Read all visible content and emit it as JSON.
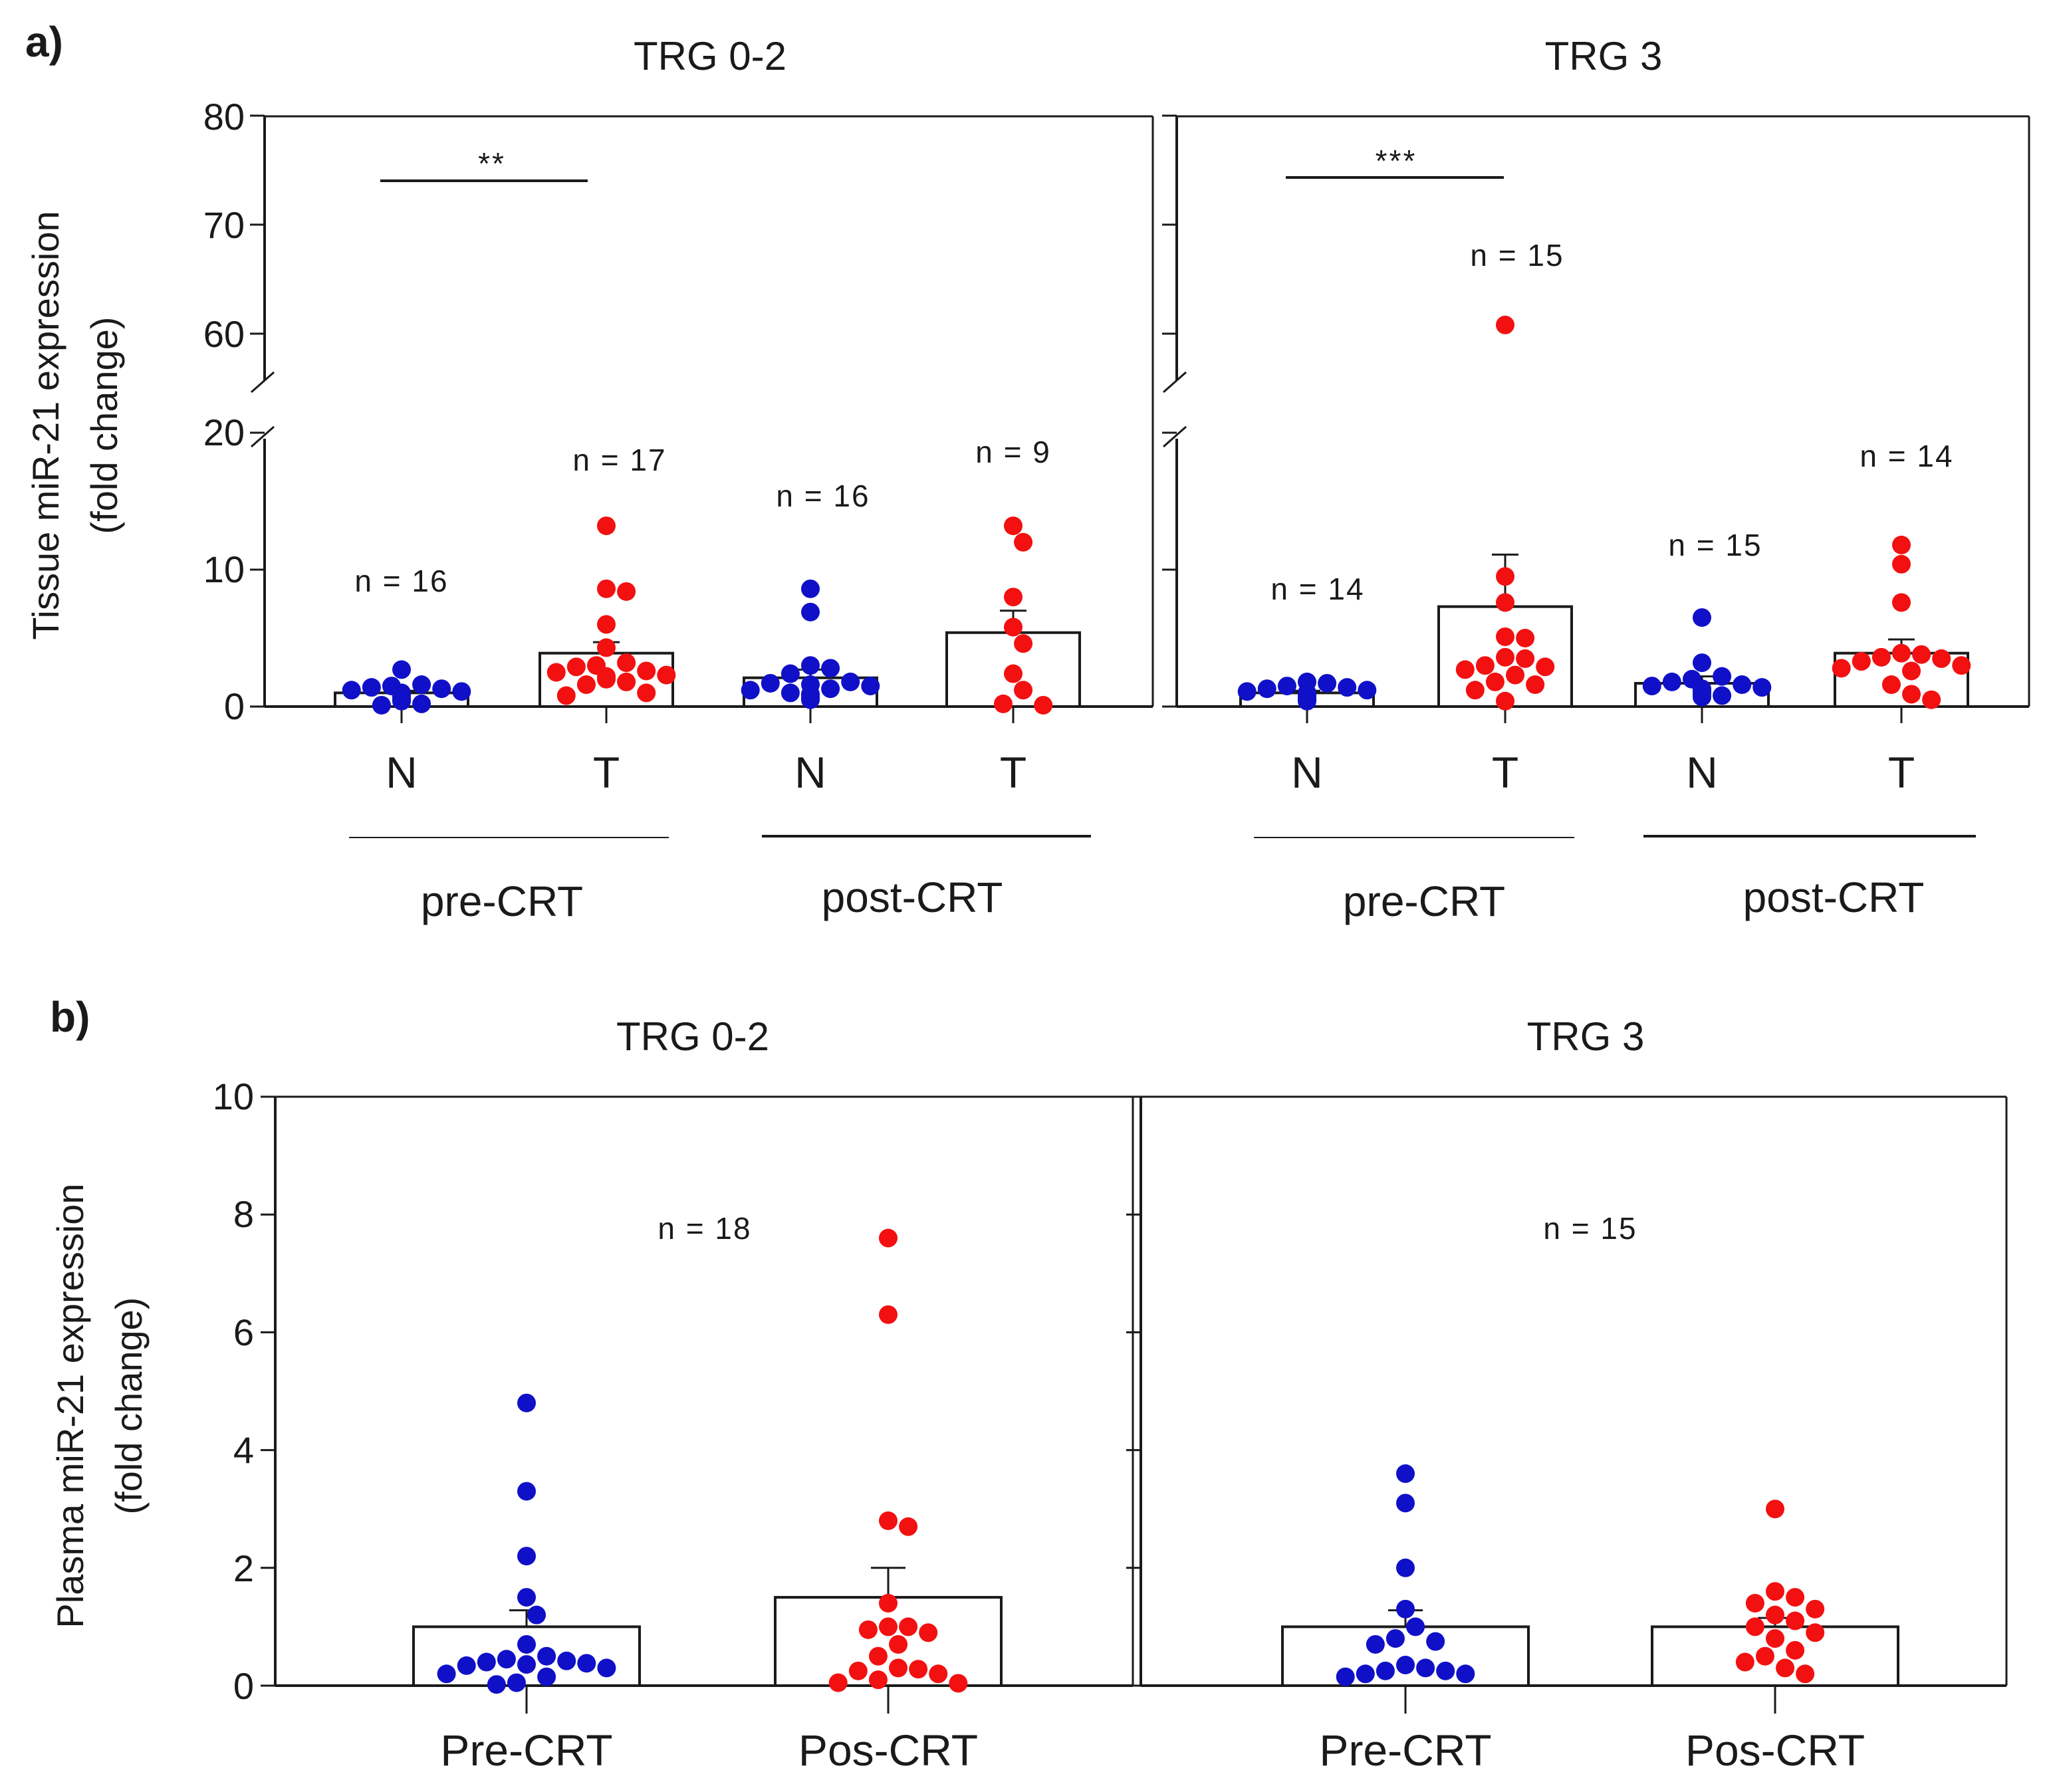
{
  "colors": {
    "normal": "#1010c8",
    "tumor": "#f21010",
    "axis": "#1a1a1a"
  },
  "chart_data": [
    {
      "panel": "a)",
      "type": "bar",
      "ylabel_lines": [
        "Tissue miR-21 expression",
        "(fold change)"
      ],
      "y_ticks": [
        "0",
        "10",
        "20",
        "60",
        "70",
        "80"
      ],
      "y_break": {
        "lower": [
          0,
          22
        ],
        "upper": [
          55,
          80
        ]
      },
      "facets": [
        {
          "title": "TRG 0-2",
          "significance": "**",
          "groups": [
            {
              "label": "pre-CRT",
              "bars": [
                {
                  "category": "N",
                  "n_label": "n = 16",
                  "mean": 1.0,
                  "sem": 0.15,
                  "color": "normal",
                  "points": [
                    2.7,
                    1.6,
                    1.5,
                    1.4,
                    1.3,
                    1.2,
                    1.1,
                    1.0,
                    0.9,
                    0.8,
                    0.7,
                    0.6,
                    0.5,
                    0.4,
                    0.2,
                    0.1
                  ]
                },
                {
                  "category": "T",
                  "n_label": "n = 17",
                  "mean": 3.9,
                  "sem": 0.8,
                  "color": "tumor",
                  "points": [
                    13.2,
                    8.6,
                    8.4,
                    6.0,
                    4.3,
                    3.2,
                    3.0,
                    2.9,
                    2.6,
                    2.5,
                    2.3,
                    2.2,
                    2.0,
                    1.8,
                    1.6,
                    1.0,
                    0.8
                  ]
                }
              ]
            },
            {
              "label": "post-CRT",
              "bars": [
                {
                  "category": "N",
                  "n_label": "n = 16",
                  "mean": 2.1,
                  "sem": 0.6,
                  "color": "normal",
                  "points": [
                    8.6,
                    6.9,
                    3.0,
                    2.8,
                    2.4,
                    1.8,
                    1.7,
                    1.6,
                    1.5,
                    1.3,
                    1.2,
                    1.0,
                    0.9,
                    0.8,
                    0.6,
                    0.5
                  ]
                },
                {
                  "category": "T",
                  "n_label": "n = 9",
                  "mean": 5.4,
                  "sem": 1.6,
                  "color": "tumor",
                  "points": [
                    13.2,
                    12.0,
                    8.0,
                    5.8,
                    4.6,
                    2.4,
                    1.2,
                    0.2,
                    0.1
                  ]
                }
              ]
            }
          ]
        },
        {
          "title": "TRG 3",
          "significance": "***",
          "groups": [
            {
              "label": "pre-CRT",
              "bars": [
                {
                  "category": "N",
                  "n_label": "n = 14",
                  "mean": 1.0,
                  "sem": 0.15,
                  "color": "normal",
                  "points": [
                    1.8,
                    1.7,
                    1.5,
                    1.4,
                    1.3,
                    1.2,
                    1.1,
                    1.0,
                    0.9,
                    0.8,
                    0.7,
                    0.6,
                    0.5,
                    0.4
                  ]
                },
                {
                  "category": "T",
                  "n_label": "n = 15",
                  "mean": 7.3,
                  "sem": 3.8,
                  "color": "tumor",
                  "points": [
                    60.8,
                    9.5,
                    7.6,
                    5.1,
                    5.0,
                    3.6,
                    3.5,
                    3.0,
                    2.9,
                    2.7,
                    2.3,
                    1.8,
                    1.6,
                    1.2,
                    0.4
                  ]
                }
              ]
            },
            {
              "label": "post-CRT",
              "bars": [
                {
                  "category": "N",
                  "n_label": "n = 15",
                  "mean": 1.7,
                  "sem": 0.5,
                  "color": "normal",
                  "points": [
                    6.5,
                    3.2,
                    2.2,
                    2.0,
                    1.8,
                    1.6,
                    1.5,
                    1.4,
                    1.3,
                    1.2,
                    1.1,
                    1.0,
                    0.9,
                    0.8,
                    0.7
                  ]
                },
                {
                  "category": "T",
                  "n_label": "n = 14",
                  "mean": 3.9,
                  "sem": 1.0,
                  "color": "tumor",
                  "points": [
                    11.8,
                    10.4,
                    7.6,
                    3.9,
                    3.8,
                    3.6,
                    3.5,
                    3.3,
                    3.0,
                    2.8,
                    2.6,
                    1.6,
                    0.9,
                    0.5
                  ]
                }
              ]
            }
          ]
        }
      ]
    },
    {
      "panel": "b)",
      "type": "bar",
      "ylabel_lines": [
        "Plasma miR-21 expression",
        "(fold change)"
      ],
      "y_ticks": [
        "0",
        "2",
        "4",
        "6",
        "8",
        "10"
      ],
      "ylim": [
        0,
        10
      ],
      "facets": [
        {
          "title": "TRG 0-2",
          "n_label": "n = 18",
          "bars": [
            {
              "category": "Pre-CRT",
              "mean": 1.0,
              "sem": 0.28,
              "color": "normal",
              "points": [
                4.8,
                3.3,
                2.2,
                1.5,
                1.2,
                0.7,
                0.5,
                0.45,
                0.42,
                0.4,
                0.38,
                0.36,
                0.34,
                0.3,
                0.2,
                0.15,
                0.05,
                0.02
              ]
            },
            {
              "category": "Pos-CRT",
              "mean": 1.5,
              "sem": 0.5,
              "color": "tumor",
              "points": [
                7.6,
                6.3,
                2.8,
                2.7,
                1.4,
                1.0,
                1.0,
                0.95,
                0.9,
                0.7,
                0.5,
                0.3,
                0.28,
                0.25,
                0.2,
                0.1,
                0.05,
                0.04
              ]
            }
          ]
        },
        {
          "title": "TRG 3",
          "n_label": "n = 15",
          "bars": [
            {
              "category": "Pre-CRT",
              "mean": 1.0,
              "sem": 0.28,
              "color": "normal",
              "points": [
                3.6,
                3.1,
                2.0,
                1.3,
                1.0,
                0.8,
                0.75,
                0.7,
                0.35,
                0.3,
                0.25,
                0.25,
                0.2,
                0.2,
                0.15
              ]
            },
            {
              "category": "Pos-CRT",
              "mean": 1.0,
              "sem": 0.15,
              "color": "tumor",
              "points": [
                3.0,
                1.6,
                1.5,
                1.4,
                1.3,
                1.2,
                1.1,
                1.0,
                0.9,
                0.8,
                0.6,
                0.5,
                0.4,
                0.3,
                0.2
              ]
            }
          ]
        }
      ]
    }
  ]
}
